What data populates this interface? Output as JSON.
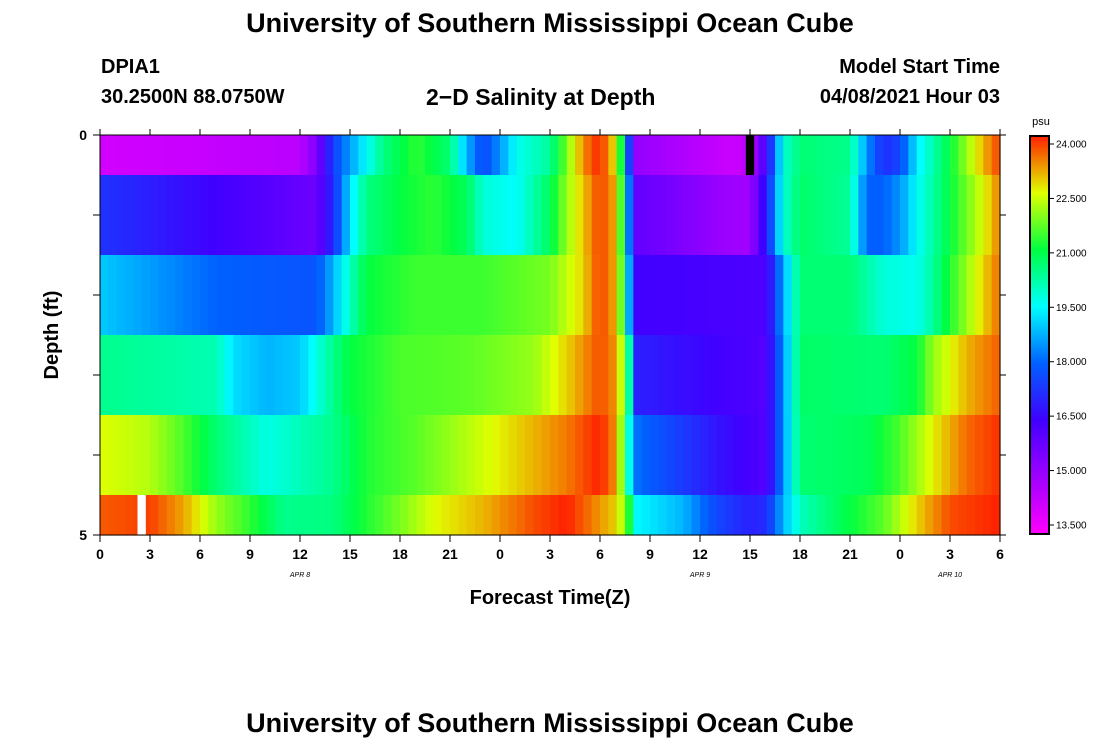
{
  "header": {
    "title": "University of Southern Mississippi Ocean Cube",
    "station": "DPIA1",
    "coords": "30.2500N  88.0750W",
    "model_label": "Model Start Time",
    "model_time": "04/08/2021 Hour 03"
  },
  "footer": {
    "title": "University of Southern Mississippi Ocean Cube"
  },
  "chart_data": {
    "type": "heatmap",
    "title": "2−D Salinity at Depth",
    "xlabel": "Forecast Time(Z)",
    "ylabel": "Depth (ft)",
    "colorbar_unit": "psu",
    "colorbar_ticks": [
      "24.000",
      "22.500",
      "21.000",
      "19.500",
      "18.000",
      "16.500",
      "15.000",
      "13.500"
    ],
    "colorbar_range": [
      13.5,
      24.0
    ],
    "x_tick_labels": [
      "0",
      "3",
      "6",
      "9",
      "12",
      "15",
      "18",
      "21",
      "0",
      "3",
      "6",
      "9",
      "12",
      "15",
      "18",
      "21",
      "0",
      "3",
      "6"
    ],
    "x_range_hours": [
      0,
      54
    ],
    "date_labels": [
      {
        "text": "APR  8",
        "at_hour": 12
      },
      {
        "text": "APR  9",
        "at_hour": 36
      },
      {
        "text": "APR  10",
        "at_hour": 51
      }
    ],
    "y_tick_labels": [
      "0",
      "5"
    ],
    "y_range_ft": [
      0,
      5
    ],
    "depth_layers_ft": [
      [
        0,
        0.5
      ],
      [
        0.5,
        1.5
      ],
      [
        1.5,
        2.5
      ],
      [
        2.5,
        3.5
      ],
      [
        3.5,
        4.5
      ],
      [
        4.5,
        5
      ]
    ],
    "series": [
      {
        "name": "0-0.5 ft",
        "knots": [
          [
            0,
            14.2
          ],
          [
            12,
            14.6
          ],
          [
            13,
            15.5
          ],
          [
            14,
            17.5
          ],
          [
            15,
            18.6
          ],
          [
            16,
            19.5
          ],
          [
            17,
            20.5
          ],
          [
            19,
            21.3
          ],
          [
            21,
            20.6
          ],
          [
            22,
            18.8
          ],
          [
            23,
            17.6
          ],
          [
            24,
            18.5
          ],
          [
            25,
            19.6
          ],
          [
            27,
            20.3
          ],
          [
            28,
            21.8
          ],
          [
            29,
            23.3
          ],
          [
            30,
            24.0
          ],
          [
            31,
            22.5
          ],
          [
            31.5,
            19.8
          ],
          [
            32,
            15.2
          ],
          [
            38,
            14.3
          ],
          [
            39,
            14.6
          ],
          [
            40,
            16.5
          ],
          [
            41,
            19.8
          ],
          [
            42,
            20.6
          ],
          [
            45,
            20.4
          ],
          [
            46,
            18.5
          ],
          [
            47,
            17.2
          ],
          [
            48,
            17.6
          ],
          [
            49,
            19.3
          ],
          [
            51,
            21.0
          ],
          [
            53,
            23.0
          ],
          [
            54,
            23.8
          ]
        ]
      },
      {
        "name": "0.5-1.5 ft",
        "knots": [
          [
            0,
            17.3
          ],
          [
            13,
            15.8
          ],
          [
            14,
            17.2
          ],
          [
            15,
            19.2
          ],
          [
            16,
            20.5
          ],
          [
            18,
            21.0
          ],
          [
            20,
            21.3
          ],
          [
            22,
            20.8
          ],
          [
            23,
            19.8
          ],
          [
            25,
            19.5
          ],
          [
            27,
            20.8
          ],
          [
            28,
            22.0
          ],
          [
            30,
            23.8
          ],
          [
            31,
            23.0
          ],
          [
            31.6,
            19.5
          ],
          [
            32,
            16.0
          ],
          [
            38,
            15.0
          ],
          [
            39,
            15.0
          ],
          [
            40,
            17.0
          ],
          [
            41,
            19.8
          ],
          [
            42,
            20.7
          ],
          [
            45,
            20.3
          ],
          [
            46,
            18.0
          ],
          [
            47,
            18.0
          ],
          [
            48,
            18.5
          ],
          [
            49,
            19.5
          ],
          [
            51,
            21.0
          ],
          [
            53,
            22.5
          ],
          [
            54,
            23.4
          ]
        ]
      },
      {
        "name": "1.5-2.5 ft",
        "knots": [
          [
            0,
            19.0
          ],
          [
            7,
            18.0
          ],
          [
            13,
            17.8
          ],
          [
            14,
            18.8
          ],
          [
            15,
            20.0
          ],
          [
            16,
            21.0
          ],
          [
            19,
            21.4
          ],
          [
            23,
            21.4
          ],
          [
            27,
            21.8
          ],
          [
            29,
            22.8
          ],
          [
            30,
            23.8
          ],
          [
            31,
            23.0
          ],
          [
            31.6,
            20.0
          ],
          [
            32,
            16.5
          ],
          [
            40,
            16.3
          ],
          [
            41,
            18.7
          ],
          [
            42,
            20.6
          ],
          [
            45,
            20.6
          ],
          [
            47,
            19.8
          ],
          [
            49,
            19.6
          ],
          [
            50,
            20.3
          ],
          [
            51,
            21.2
          ],
          [
            53,
            22.8
          ],
          [
            54,
            23.5
          ]
        ]
      },
      {
        "name": "2.5-3.5 ft",
        "knots": [
          [
            0,
            20.4
          ],
          [
            7,
            20.1
          ],
          [
            8,
            19.2
          ],
          [
            10,
            18.8
          ],
          [
            12,
            19.0
          ],
          [
            14,
            20.4
          ],
          [
            15,
            21.0
          ],
          [
            18,
            21.5
          ],
          [
            22,
            21.6
          ],
          [
            26,
            22.0
          ],
          [
            28,
            22.8
          ],
          [
            30,
            23.7
          ],
          [
            31,
            23.2
          ],
          [
            31.7,
            20.8
          ],
          [
            32,
            17.0
          ],
          [
            40,
            16.2
          ],
          [
            41,
            18.5
          ],
          [
            42,
            20.7
          ],
          [
            47,
            20.6
          ],
          [
            49,
            21.0
          ],
          [
            50,
            22.0
          ],
          [
            52,
            23.0
          ],
          [
            54,
            23.6
          ]
        ]
      },
      {
        "name": "3.5-4.5 ft",
        "knots": [
          [
            0,
            22.5
          ],
          [
            3,
            22.2
          ],
          [
            5,
            21.5
          ],
          [
            7,
            20.6
          ],
          [
            10,
            19.7
          ],
          [
            14,
            20.4
          ],
          [
            16,
            21.2
          ],
          [
            19,
            21.6
          ],
          [
            22,
            22.2
          ],
          [
            25,
            22.8
          ],
          [
            28,
            23.4
          ],
          [
            30,
            24.0
          ],
          [
            31,
            23.2
          ],
          [
            31.7,
            20.0
          ],
          [
            32,
            18.2
          ],
          [
            35,
            17.4
          ],
          [
            37,
            16.8
          ],
          [
            39,
            16.4
          ],
          [
            40,
            16.2
          ],
          [
            41,
            18.5
          ],
          [
            42,
            20.6
          ],
          [
            46,
            20.8
          ],
          [
            48,
            21.5
          ],
          [
            50,
            22.6
          ],
          [
            52,
            23.5
          ],
          [
            54,
            23.9
          ]
        ]
      },
      {
        "name": "4.5-5 ft",
        "knots": [
          [
            0,
            23.6
          ],
          [
            3,
            23.8
          ],
          [
            5,
            23.1
          ],
          [
            7,
            22.0
          ],
          [
            9,
            21.3
          ],
          [
            11,
            20.4
          ],
          [
            14,
            20.5
          ],
          [
            16,
            21.2
          ],
          [
            18,
            21.8
          ],
          [
            20,
            22.5
          ],
          [
            23,
            23.0
          ],
          [
            26,
            23.7
          ],
          [
            28,
            24.0
          ],
          [
            31,
            22.8
          ],
          [
            31.7,
            21.5
          ],
          [
            32,
            19.5
          ],
          [
            35,
            18.8
          ],
          [
            37,
            17.6
          ],
          [
            39,
            17.0
          ],
          [
            40,
            17.2
          ],
          [
            41,
            18.8
          ],
          [
            42,
            20.0
          ],
          [
            45,
            21.0
          ],
          [
            47,
            21.6
          ],
          [
            49,
            22.8
          ],
          [
            51,
            23.7
          ],
          [
            54,
            24.0
          ]
        ]
      }
    ],
    "missing_cells": [
      {
        "hour": 2.5,
        "layer": 5,
        "color": "#ffffff"
      },
      {
        "hour": 39,
        "layer": 0,
        "color": "#000000"
      }
    ]
  }
}
